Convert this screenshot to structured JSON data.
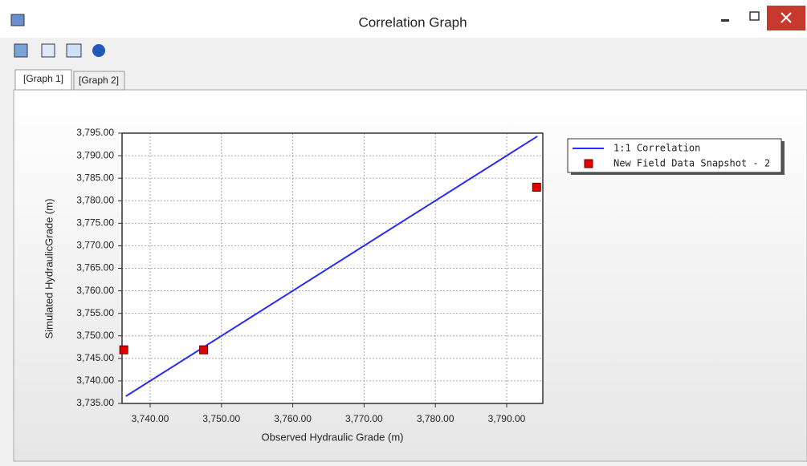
{
  "window": {
    "title": "Correlation Graph",
    "tabs": [
      "[Graph 1]",
      "[Graph 2]"
    ]
  },
  "chart_data": {
    "type": "scatter",
    "x_label": "Observed Hydraulic Grade (m)",
    "y_label": "Simulated HydraulicGrade (m)",
    "xlim": [
      3736.06,
      3795.07
    ],
    "ylim": [
      3735,
      3795
    ],
    "xticks": [
      {
        "value": 3740,
        "label": "3,740.00"
      },
      {
        "value": 3750,
        "label": "3,750.00"
      },
      {
        "value": 3760,
        "label": "3,760.00"
      },
      {
        "value": 3770,
        "label": "3,770.00"
      },
      {
        "value": 3780,
        "label": "3,780.00"
      },
      {
        "value": 3790,
        "label": "3,790.00"
      }
    ],
    "yticks": [
      {
        "value": 3735,
        "label": "3,735.00"
      },
      {
        "value": 3740,
        "label": "3,740.00"
      },
      {
        "value": 3745,
        "label": "3,745.00"
      },
      {
        "value": 3750,
        "label": "3,750.00"
      },
      {
        "value": 3755,
        "label": "3,755.00"
      },
      {
        "value": 3760,
        "label": "3,760.00"
      },
      {
        "value": 3765,
        "label": "3,765.00"
      },
      {
        "value": 3770,
        "label": "3,770.00"
      },
      {
        "value": 3775,
        "label": "3,775.00"
      },
      {
        "value": 3780,
        "label": "3,780.00"
      },
      {
        "value": 3785,
        "label": "3,785.00"
      },
      {
        "value": 3790,
        "label": "3,790.00"
      },
      {
        "value": 3795,
        "label": "3,795.00"
      }
    ],
    "grid": true,
    "legend": "right",
    "series": [
      {
        "name": "1:1 Correlation",
        "type": "line",
        "color": "#2a2aff",
        "x": [
          3736.6,
          3794.3
        ],
        "values": [
          3736.6,
          3794.3
        ]
      },
      {
        "name": "New Field Data Snapshot - 2",
        "type": "markers",
        "color": "#e00000",
        "x": [
          3736.3,
          3747.5,
          3794.2
        ],
        "values": [
          3746.9,
          3746.9,
          3783.0
        ]
      }
    ]
  }
}
